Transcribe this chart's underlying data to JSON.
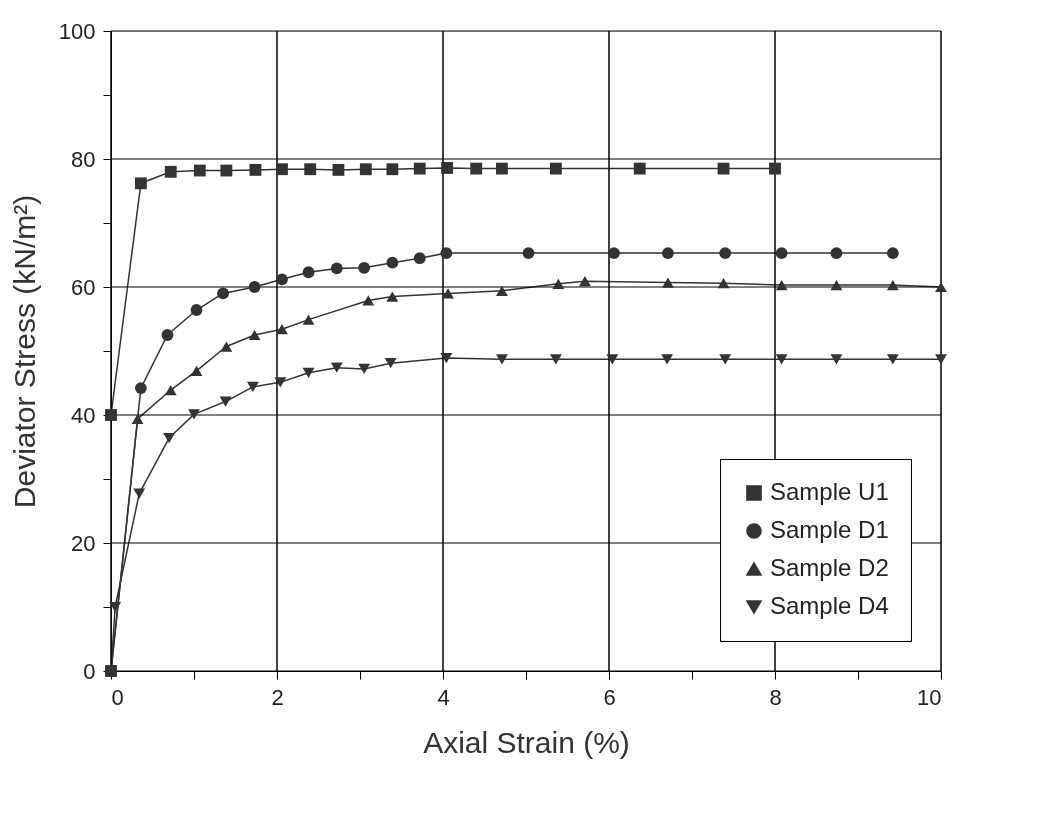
{
  "chart_data": {
    "type": "line",
    "xlabel": "Axial Strain (%)",
    "ylabel": "Deviator Stress (kN/m²)",
    "xlim": [
      0,
      10
    ],
    "ylim": [
      0,
      100
    ],
    "xticks": [
      0,
      {
        "value": 1,
        "label": null
      },
      2,
      {
        "value": 3,
        "label": null
      },
      4,
      {
        "value": 5,
        "label": null
      },
      6,
      {
        "value": 7,
        "label": null
      },
      8,
      {
        "value": 9,
        "label": null
      },
      10
    ],
    "yticks": [
      0,
      {
        "value": 10,
        "label": null
      },
      20,
      {
        "value": 30,
        "label": null
      },
      40,
      {
        "value": 50,
        "label": null
      },
      60,
      {
        "value": 70,
        "label": null
      },
      80,
      {
        "value": 90,
        "label": null
      },
      100
    ],
    "grid": true,
    "legend": "bottom right",
    "line_style": "solid",
    "series": [
      {
        "name": "Sample U1",
        "color": "#333333",
        "marker": "square",
        "x": [
          0,
          0,
          0.36,
          0.72,
          1.07,
          1.39,
          1.74,
          2.06,
          2.4,
          2.74,
          3.07,
          3.39,
          3.72,
          4.05,
          4.4,
          4.71,
          5.36,
          6.37,
          7.38,
          8.0
        ],
        "values": [
          0,
          40,
          76.2,
          78,
          78.2,
          78.2,
          78.3,
          78.4,
          78.4,
          78.3,
          78.4,
          78.4,
          78.5,
          78.6,
          78.5,
          78.5,
          78.5,
          78.5,
          78.5,
          78.5
        ]
      },
      {
        "name": "Sample D1",
        "color": "#333333",
        "marker": "circle",
        "x": [
          0,
          0.36,
          0.68,
          1.03,
          1.35,
          1.73,
          2.06,
          2.38,
          2.72,
          3.05,
          3.39,
          3.72,
          4.04,
          5.03,
          6.06,
          6.71,
          7.4,
          8.08,
          8.74,
          9.42
        ],
        "values": [
          0,
          44.2,
          52.5,
          56.4,
          59,
          60,
          61.2,
          62.3,
          62.9,
          63,
          63.8,
          64.5,
          65.3,
          65.3,
          65.3,
          65.3,
          65.3,
          65.3,
          65.3,
          65.3
        ]
      },
      {
        "name": "Sample D2",
        "color": "#333333",
        "marker": "triangle",
        "x": [
          0,
          0.05,
          0.32,
          0.72,
          1.03,
          1.39,
          1.73,
          2.06,
          2.38,
          3.1,
          3.39,
          4.06,
          4.71,
          5.39,
          5.71,
          6.71,
          7.38,
          8.08,
          8.74,
          9.42,
          10
        ],
        "values": [
          0,
          null,
          39.4,
          43.9,
          46.9,
          50.7,
          52.5,
          53.4,
          54.9,
          57.9,
          58.5,
          59,
          59.4,
          60.5,
          60.9,
          60.7,
          60.6,
          60.3,
          60.3,
          60.3,
          60
        ]
      },
      {
        "name": "Sample D4",
        "color": "#333333",
        "marker": "triangle-down",
        "x": [
          0,
          0.05,
          0.34,
          0.7,
          1.0,
          1.38,
          1.71,
          2.04,
          2.38,
          2.72,
          3.05,
          3.37,
          4.04,
          4.71,
          5.36,
          6.04,
          6.7,
          7.4,
          8.08,
          8.74,
          9.42,
          10
        ],
        "values": [
          0,
          10,
          27.7,
          36.4,
          40.1,
          42.1,
          44.4,
          45.1,
          46.6,
          47.4,
          47.2,
          48.1,
          48.9,
          48.7,
          48.7,
          48.7,
          48.7,
          48.7,
          48.7,
          48.7,
          48.7,
          48.7
        ]
      }
    ]
  }
}
